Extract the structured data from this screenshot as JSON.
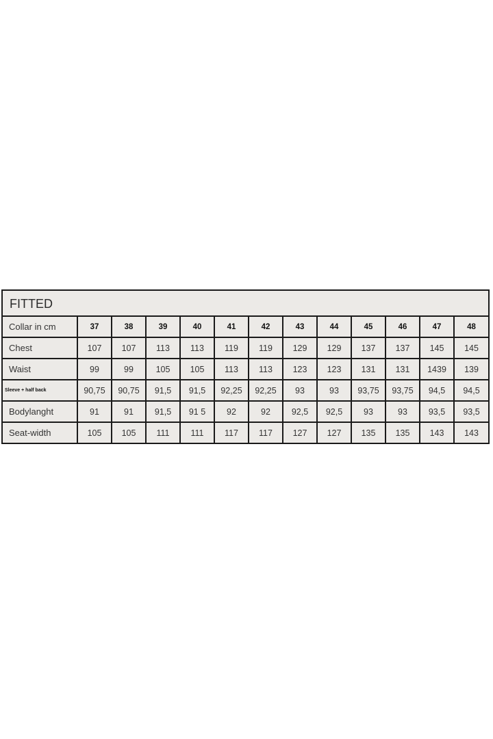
{
  "title": "FITTED",
  "header": {
    "label": "Collar in cm",
    "sizes": [
      "37",
      "38",
      "39",
      "40",
      "41",
      "42",
      "43",
      "44",
      "45",
      "46",
      "47",
      "48"
    ]
  },
  "rows": [
    {
      "label": "Chest",
      "values": [
        "107",
        "107",
        "113",
        "113",
        "119",
        "119",
        "129",
        "129",
        "137",
        "137",
        "145",
        "145"
      ]
    },
    {
      "label": "Waist",
      "values": [
        "99",
        "99",
        "105",
        "105",
        "113",
        "113",
        "123",
        "123",
        "131",
        "131",
        "1439",
        "139"
      ]
    },
    {
      "label": "Sleeve + half back",
      "values": [
        "90,75",
        "90,75",
        "91,5",
        "91,5",
        "92,25",
        "92,25",
        "93",
        "93",
        "93,75",
        "93,75",
        "94,5",
        "94,5"
      ]
    },
    {
      "label": "Bodylanght",
      "values": [
        "91",
        "91",
        "91,5",
        "91 5",
        "92",
        "92",
        "92,5",
        "92,5",
        "93",
        "93",
        "93,5",
        "93,5"
      ]
    },
    {
      "label": "Seat-width",
      "values": [
        "105",
        "105",
        "111",
        "111",
        "117",
        "117",
        "127",
        "127",
        "135",
        "135",
        "143",
        "143"
      ]
    }
  ]
}
